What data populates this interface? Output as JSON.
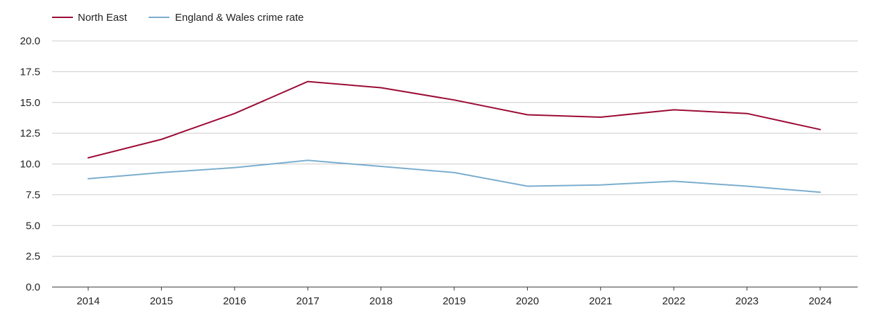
{
  "chart_data": {
    "type": "line",
    "title": "",
    "xlabel": "",
    "ylabel": "",
    "categories": [
      "2014",
      "2015",
      "2016",
      "2017",
      "2018",
      "2019",
      "2020",
      "2021",
      "2022",
      "2023",
      "2024"
    ],
    "ylim": [
      0,
      20
    ],
    "yticks": [
      "0.0",
      "2.5",
      "5.0",
      "7.5",
      "10.0",
      "12.5",
      "15.0",
      "17.5",
      "20.0"
    ],
    "grid": true,
    "legend_position": "top-left",
    "series": [
      {
        "name": "North East",
        "color": "#9b0a35",
        "values": [
          10.5,
          12.0,
          14.1,
          16.7,
          16.2,
          15.2,
          14.0,
          13.8,
          14.4,
          14.1,
          12.8
        ]
      },
      {
        "name": "England & Wales crime rate",
        "color": "#7aadcf",
        "values": [
          8.8,
          9.3,
          9.7,
          10.3,
          9.8,
          9.3,
          8.2,
          8.3,
          8.6,
          8.2,
          7.7
        ]
      }
    ]
  }
}
